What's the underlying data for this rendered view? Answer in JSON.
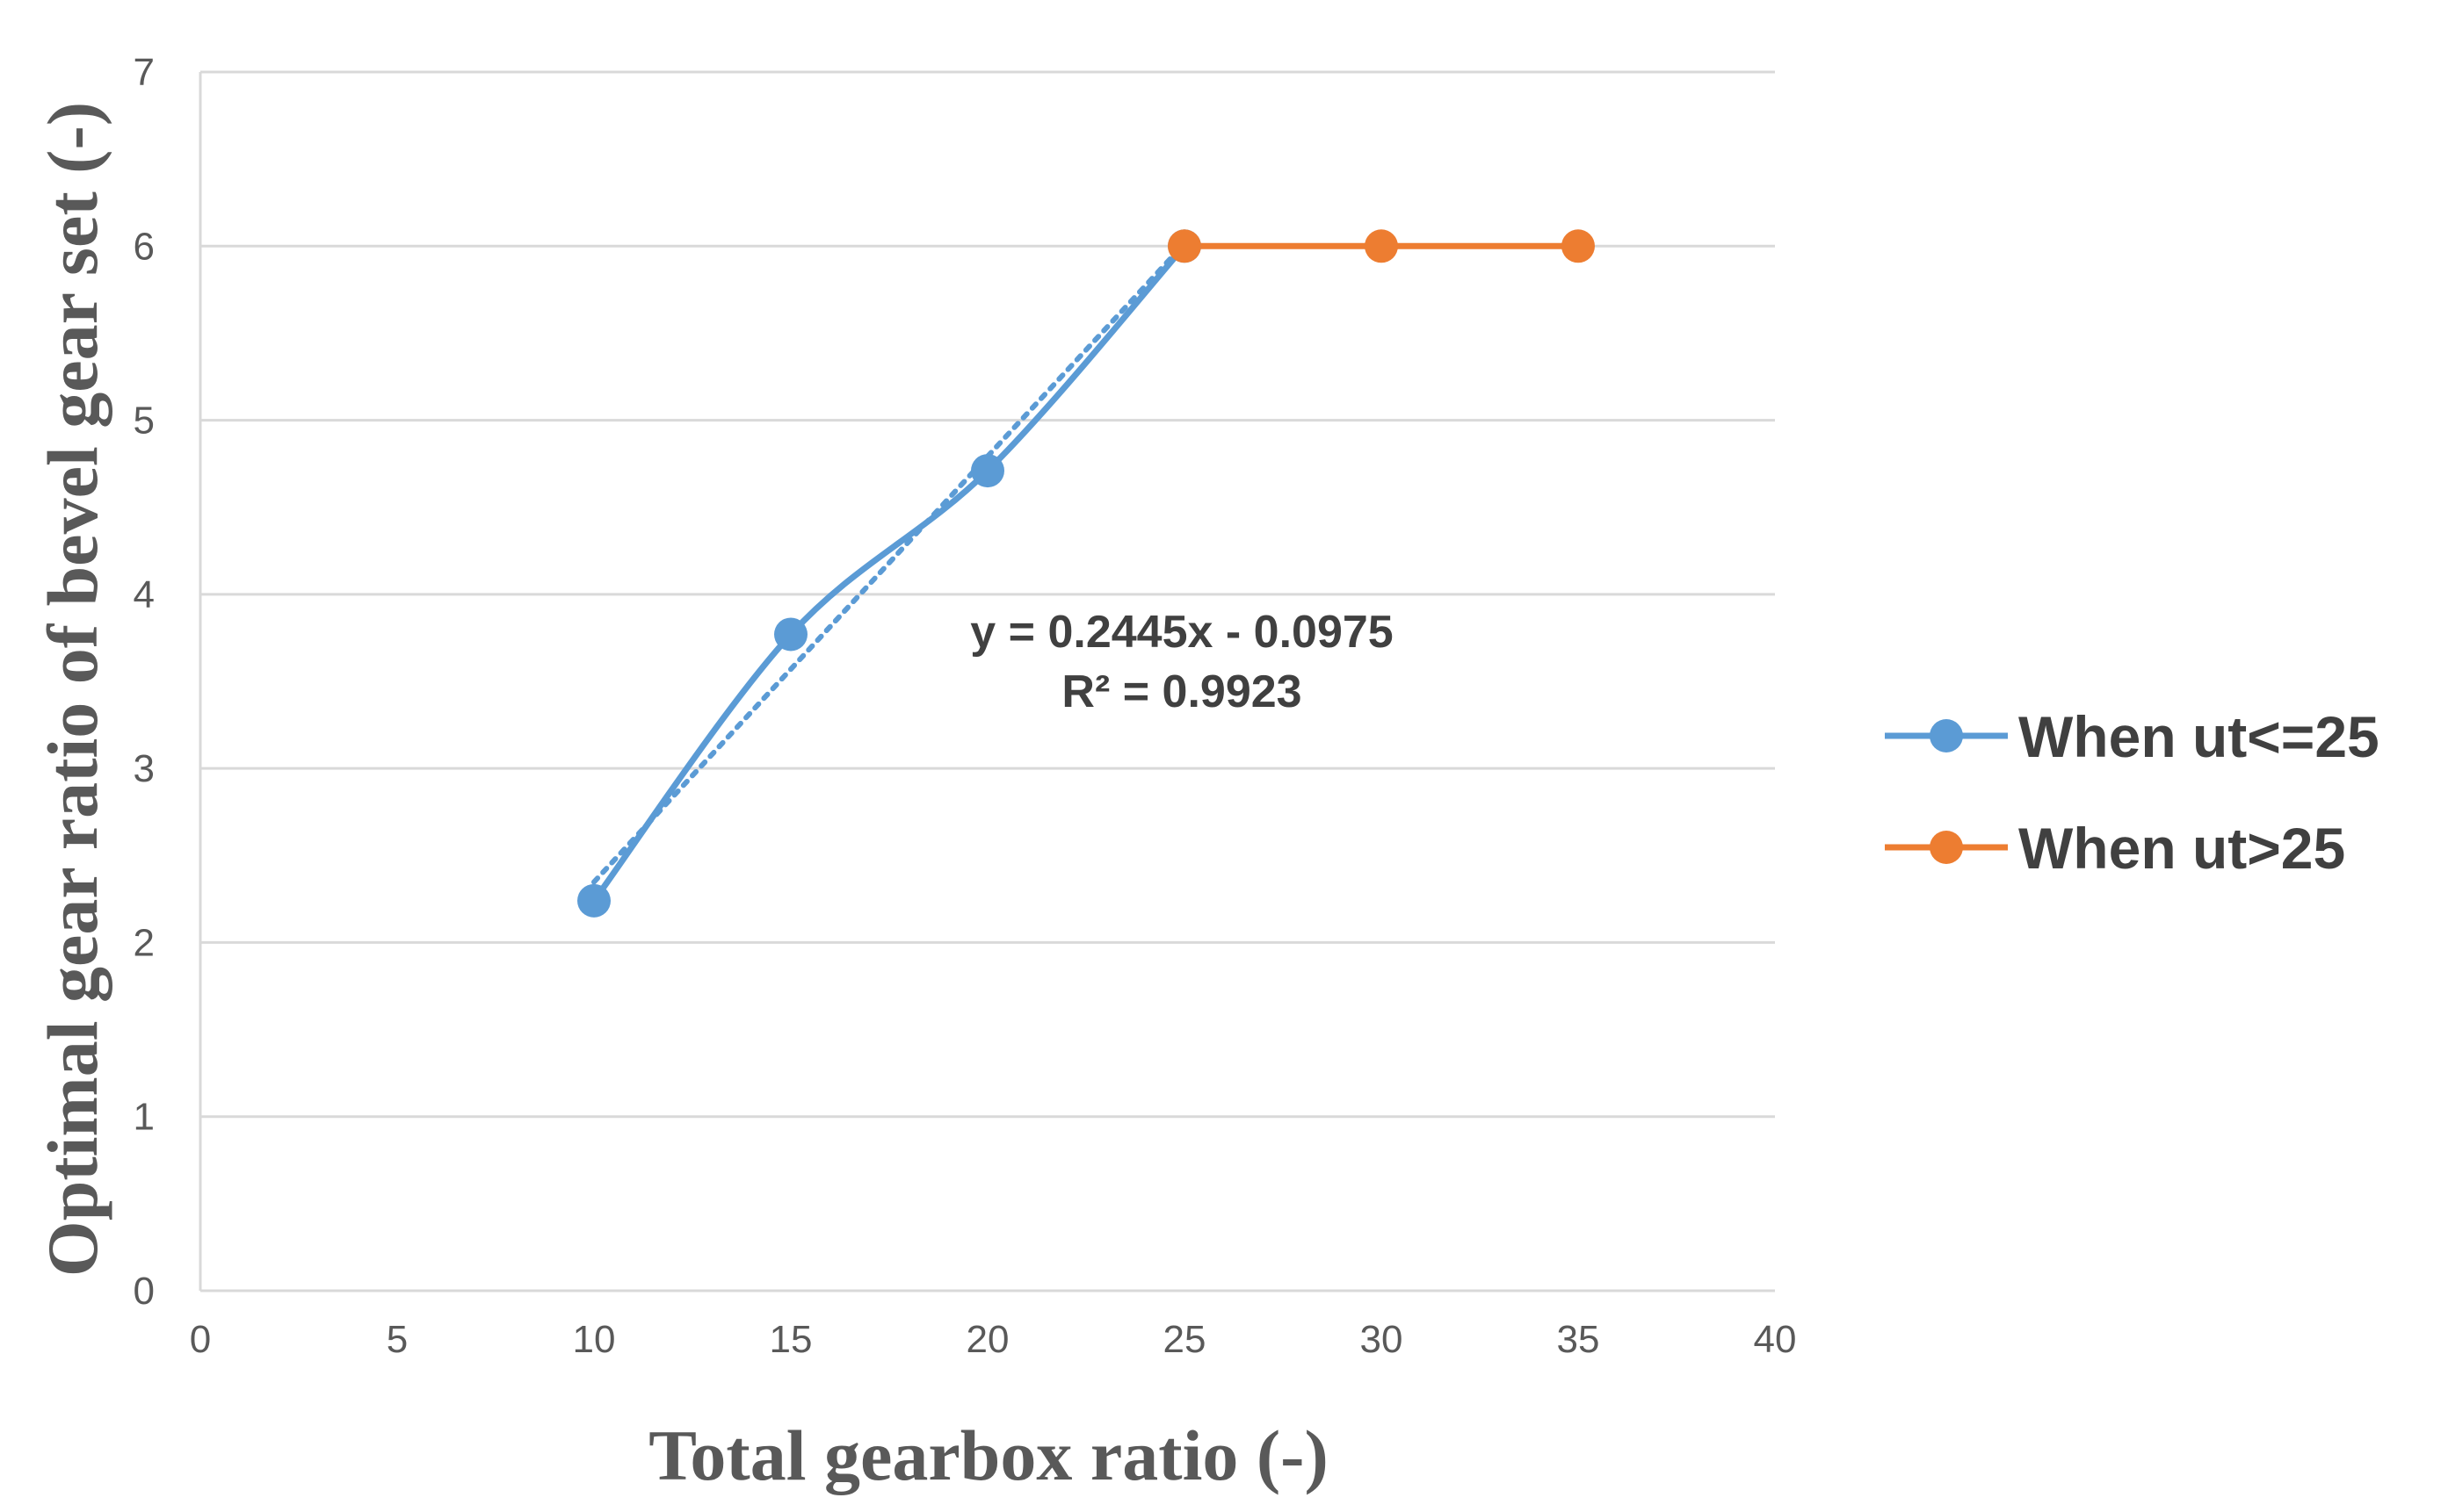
{
  "chart_data": {
    "type": "line",
    "xlabel": "Total gearbox ratio (-)",
    "ylabel": "Optimal gear ratio of bevel gear set (-)",
    "xlim": [
      0,
      40
    ],
    "ylim": [
      0,
      7
    ],
    "xticks": [
      0,
      5,
      10,
      15,
      20,
      25,
      30,
      35,
      40
    ],
    "yticks": [
      0,
      1,
      2,
      3,
      4,
      5,
      6,
      7
    ],
    "grid": "horizontal",
    "legend_position": "right",
    "series": [
      {
        "name": "When ut<=25",
        "color": "#5b9bd5",
        "x": [
          10,
          15,
          20,
          25
        ],
        "y": [
          2.24,
          3.77,
          4.71,
          6.0
        ],
        "smooth": true
      },
      {
        "name": "When ut>25",
        "color": "#ed7d31",
        "x": [
          25,
          30,
          35
        ],
        "y": [
          6.0,
          6.0,
          6.0
        ],
        "smooth": false
      }
    ],
    "trendline": {
      "series": "When ut<=25",
      "type": "linear",
      "style": "dotted",
      "color": "#5b9bd5",
      "slope": 0.2445,
      "intercept": -0.0975,
      "x_range": [
        10,
        25
      ],
      "equation_label": "y = 0.2445x - 0.0975",
      "r2_label": "R² = 0.9923"
    }
  }
}
